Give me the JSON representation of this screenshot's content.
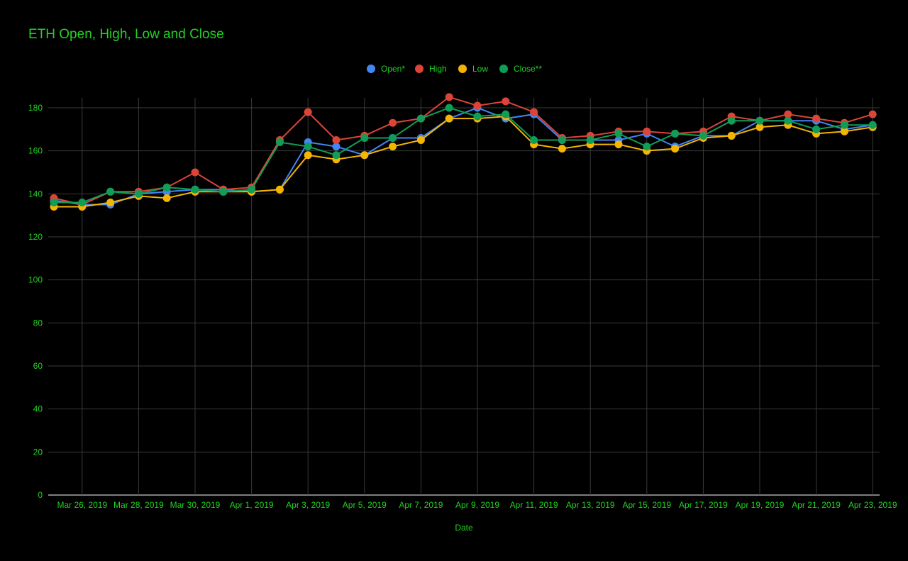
{
  "chart_data": {
    "type": "line",
    "title": "ETH Open, High, Low and Close",
    "xlabel": "Date",
    "ylabel": "",
    "ylim": [
      0,
      180
    ],
    "ytick_step": 20,
    "grid": true,
    "legend_position": "top",
    "x": [
      "2019-03-25",
      "2019-03-26",
      "2019-03-27",
      "2019-03-28",
      "2019-03-29",
      "2019-03-30",
      "2019-03-31",
      "2019-04-01",
      "2019-04-02",
      "2019-04-03",
      "2019-04-04",
      "2019-04-05",
      "2019-04-06",
      "2019-04-07",
      "2019-04-08",
      "2019-04-09",
      "2019-04-10",
      "2019-04-11",
      "2019-04-12",
      "2019-04-13",
      "2019-04-14",
      "2019-04-15",
      "2019-04-16",
      "2019-04-17",
      "2019-04-18",
      "2019-04-19",
      "2019-04-20",
      "2019-04-21",
      "2019-04-22",
      "2019-04-23"
    ],
    "x_tick_labels": [
      "Mar 26, 2019",
      "Mar 28, 2019",
      "Mar 30, 2019",
      "Apr 1, 2019",
      "Apr 3, 2019",
      "Apr 5, 2019",
      "Apr 7, 2019",
      "Apr 9, 2019",
      "Apr 11, 2019",
      "Apr 13, 2019",
      "Apr 15, 2019",
      "Apr 17, 2019",
      "Apr 19, 2019",
      "Apr 21, 2019",
      "Apr 23, 2019"
    ],
    "x_tick_indices": [
      1,
      3,
      5,
      7,
      9,
      11,
      13,
      15,
      17,
      19,
      21,
      23,
      25,
      27,
      29
    ],
    "series": [
      {
        "name": "Open*",
        "color": "#4285f4",
        "values": [
          137,
          135,
          135,
          140,
          141,
          142,
          142,
          141,
          142,
          164,
          162,
          158,
          166,
          166,
          175,
          180,
          175,
          177,
          165,
          165,
          165,
          168,
          162,
          167,
          167,
          174,
          174,
          174,
          170,
          172
        ]
      },
      {
        "name": "High",
        "color": "#db4437",
        "values": [
          138,
          135,
          141,
          141,
          143,
          150,
          142,
          143,
          165,
          178,
          165,
          167,
          173,
          175,
          185,
          181,
          183,
          178,
          166,
          167,
          169,
          169,
          168,
          169,
          176,
          174,
          177,
          175,
          173,
          177
        ]
      },
      {
        "name": "Low",
        "color": "#f4b400",
        "values": [
          134,
          134,
          136,
          139,
          138,
          141,
          141,
          141,
          142,
          158,
          156,
          158,
          162,
          165,
          175,
          175,
          176,
          163,
          161,
          163,
          163,
          160,
          161,
          166,
          167,
          171,
          172,
          168,
          169,
          171
        ]
      },
      {
        "name": "Close**",
        "color": "#0f9d58",
        "values": [
          136,
          136,
          141,
          140,
          143,
          142,
          141,
          142,
          164,
          162,
          158,
          166,
          166,
          175,
          180,
          176,
          177,
          165,
          165,
          165,
          168,
          162,
          168,
          167,
          174,
          174,
          174,
          170,
          172,
          172
        ]
      }
    ]
  }
}
